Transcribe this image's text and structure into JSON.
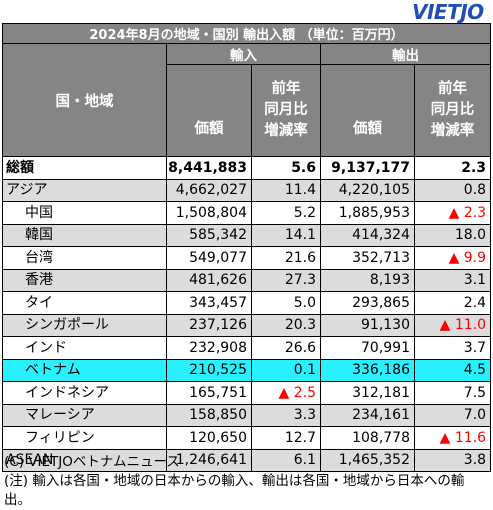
{
  "logo": "VIETJO",
  "table": {
    "title": "2024年8月の地域・国別 輸出入額 （単位：百万円）",
    "col_region": "国・地域",
    "group_import": "輸入",
    "group_export": "輸出",
    "col_value": "価額",
    "col_change": "前年\n同月比\n増減率",
    "rows": [
      {
        "name": "総額",
        "imp": "8,441,883",
        "imp_chg": "5.6",
        "exp": "9,137,177",
        "exp_chg": "2.3",
        "style": "bold"
      },
      {
        "name": "アジア",
        "imp": "4,662,027",
        "imp_chg": "11.4",
        "exp": "4,220,105",
        "exp_chg": "0.8",
        "style": "gray"
      },
      {
        "name": "中国",
        "imp": "1,508,804",
        "imp_chg": "5.2",
        "exp": "1,885,953",
        "exp_chg": "▲ 2.3",
        "style": "white",
        "exp_neg": true
      },
      {
        "name": "韓国",
        "imp": "585,342",
        "imp_chg": "14.1",
        "exp": "414,324",
        "exp_chg": "18.0",
        "style": "gray"
      },
      {
        "name": "台湾",
        "imp": "549,077",
        "imp_chg": "21.6",
        "exp": "352,713",
        "exp_chg": "▲ 9.9",
        "style": "white",
        "exp_neg": true
      },
      {
        "name": "香港",
        "imp": "481,626",
        "imp_chg": "27.3",
        "exp": "8,193",
        "exp_chg": "3.1",
        "style": "gray"
      },
      {
        "name": "タイ",
        "imp": "343,457",
        "imp_chg": "5.0",
        "exp": "293,865",
        "exp_chg": "2.4",
        "style": "white"
      },
      {
        "name": "シンガポール",
        "imp": "237,126",
        "imp_chg": "20.3",
        "exp": "91,130",
        "exp_chg": "▲ 11.0",
        "style": "gray",
        "exp_neg": true
      },
      {
        "name": "インド",
        "imp": "232,908",
        "imp_chg": "26.6",
        "exp": "70,991",
        "exp_chg": "3.7",
        "style": "white"
      },
      {
        "name": "ベトナム",
        "imp": "210,525",
        "imp_chg": "0.1",
        "exp": "336,186",
        "exp_chg": "4.5",
        "style": "cyan"
      },
      {
        "name": "インドネシア",
        "imp": "165,751",
        "imp_chg": "▲ 2.5",
        "exp": "312,181",
        "exp_chg": "7.5",
        "style": "white",
        "imp_neg": true
      },
      {
        "name": "マレーシア",
        "imp": "158,850",
        "imp_chg": "3.3",
        "exp": "234,161",
        "exp_chg": "7.0",
        "style": "gray"
      },
      {
        "name": "フィリピン",
        "imp": "120,650",
        "imp_chg": "12.7",
        "exp": "108,778",
        "exp_chg": "▲ 11.6",
        "style": "white",
        "exp_neg": true
      },
      {
        "name": "ASEAN",
        "imp": "1,246,641",
        "imp_chg": "6.1",
        "exp": "1,465,352",
        "exp_chg": "3.8",
        "style": "gray"
      }
    ]
  },
  "footer": {
    "copyright": "(C) VIETJOベトナムニュース",
    "note": "(注) 輸入は各国・地域の日本からの輸入、輸出は各国・地域から日本への輸出。"
  }
}
